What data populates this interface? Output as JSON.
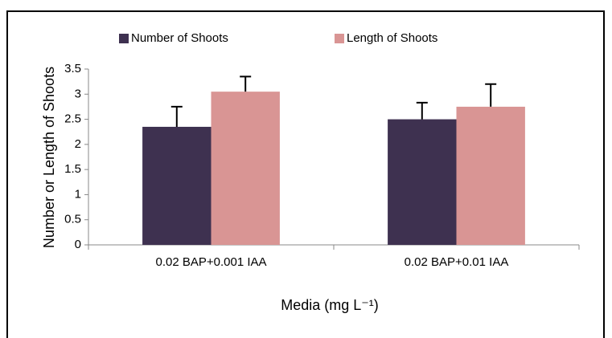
{
  "chart_data": {
    "type": "bar",
    "categories": [
      "0.02 BAP+0.001 IAA",
      "0.02 BAP+0.01 IAA"
    ],
    "series": [
      {
        "name": "Number of Shoots",
        "color": "#3e3150",
        "values": [
          2.35,
          2.5
        ],
        "errors": [
          0.4,
          0.33
        ]
      },
      {
        "name": "Length of Shoots",
        "color": "#d99594",
        "values": [
          3.05,
          2.75
        ],
        "errors": [
          0.3,
          0.45
        ]
      }
    ],
    "ylim": [
      0,
      3.5
    ],
    "yticks": [
      0,
      0.5,
      1,
      1.5,
      2,
      2.5,
      3,
      3.5
    ],
    "ylabel": "Number or Length of Shoots",
    "xlabel": "Media (mg L⁻¹)",
    "grid": false,
    "legend": "top"
  }
}
